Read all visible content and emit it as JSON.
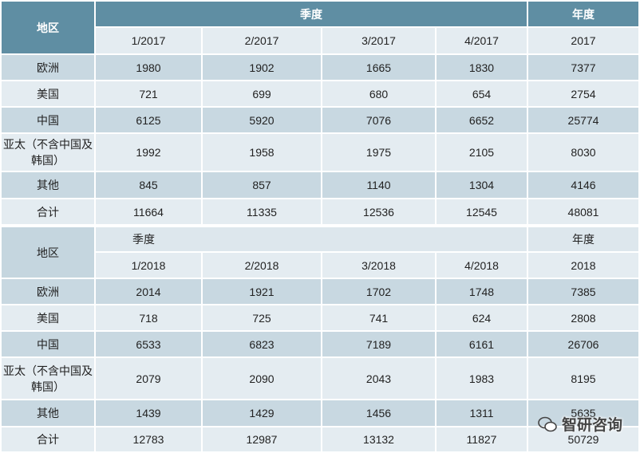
{
  "tables": [
    {
      "header": {
        "region": "地区",
        "quarter": "季度",
        "year": "年度"
      },
      "columns": [
        "1/2017",
        "2/2017",
        "3/2017",
        "4/2017",
        "2017"
      ],
      "rows": [
        [
          "欧洲",
          1980,
          1902,
          1665,
          1830,
          7377
        ],
        [
          "美国",
          721,
          699,
          680,
          654,
          2754
        ],
        [
          "中国",
          6125,
          5920,
          7076,
          6652,
          25774
        ],
        [
          "亚太（不含中国及韩国）",
          1992,
          1958,
          1975,
          2105,
          8030
        ],
        [
          "其他",
          845,
          857,
          1140,
          1304,
          4146
        ],
        [
          "合计",
          11664,
          11335,
          12536,
          12545,
          48081
        ]
      ]
    },
    {
      "header": {
        "region": "地区",
        "quarter": "季度",
        "year": "年度"
      },
      "columns": [
        "1/2018",
        "2/2018",
        "3/2018",
        "4/2018",
        "2018"
      ],
      "rows": [
        [
          "欧洲",
          2014,
          1921,
          1702,
          1748,
          7385
        ],
        [
          "美国",
          718,
          725,
          741,
          624,
          2808
        ],
        [
          "中国",
          6533,
          6823,
          7189,
          6161,
          26706
        ],
        [
          "亚太（不含中国及韩国）",
          2079,
          2090,
          2043,
          1983,
          8195
        ],
        [
          "其他",
          1439,
          1429,
          1456,
          1311,
          5635
        ],
        [
          "合计",
          12783,
          12987,
          13132,
          11827,
          50729
        ]
      ]
    }
  ],
  "watermark": "智研咨询"
}
